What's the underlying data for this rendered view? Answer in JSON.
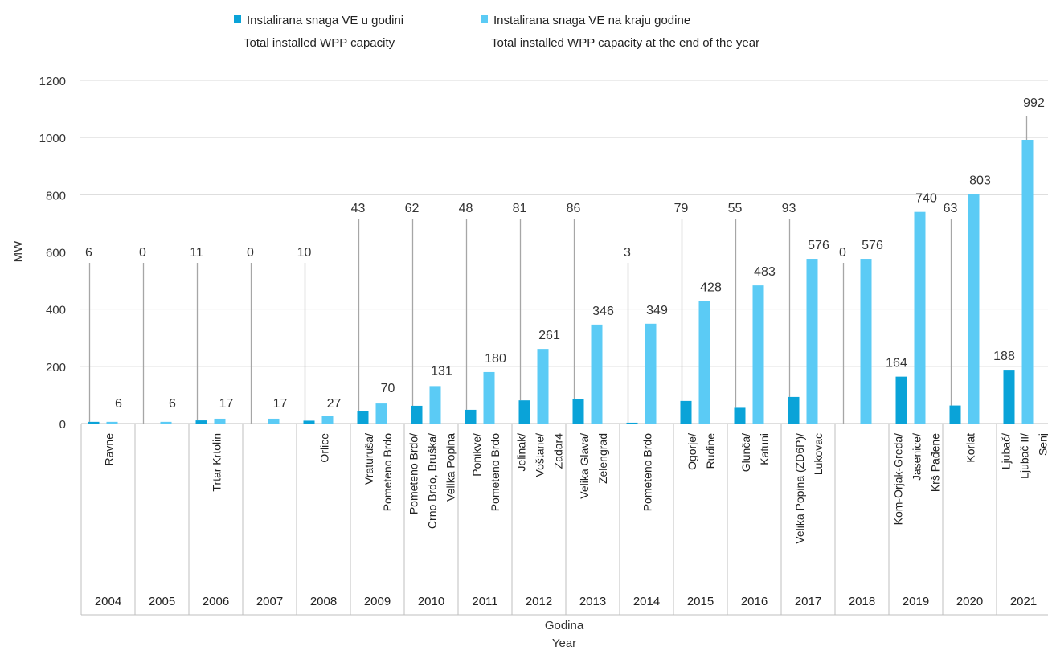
{
  "chart_data": {
    "type": "bar",
    "title": "",
    "ylabel": "MW",
    "xlabel": [
      "Godina",
      "Year"
    ],
    "ylim": [
      0,
      1200
    ],
    "yticks": [
      0,
      200,
      400,
      600,
      800,
      1000,
      1200
    ],
    "grid": true,
    "legend_position": "top",
    "categories": [
      "2004",
      "2005",
      "2006",
      "2007",
      "2008",
      "2009",
      "2010",
      "2011",
      "2012",
      "2013",
      "2014",
      "2015",
      "2016",
      "2017",
      "2018",
      "2019",
      "2020",
      "2021"
    ],
    "projects": [
      [
        "Ravne"
      ],
      [],
      [
        "Trtar Krtolin"
      ],
      [],
      [
        "Orlice"
      ],
      [
        "Vraturuša/",
        "Pometeno Brdo"
      ],
      [
        "Pometeno Brdo/",
        "Crno Brdo, Bruška/",
        "Velika Popina"
      ],
      [
        "Ponikve/",
        "Pometeno Brdo"
      ],
      [
        "Jelinak/",
        "Voštane/",
        "Zadar4"
      ],
      [
        "Velika Glava/",
        "Zelengrad"
      ],
      [
        "Pometeno Brdo"
      ],
      [
        "Ogorje/",
        "Rudine"
      ],
      [
        "Glunča/",
        "Katuni"
      ],
      [
        "Velika Popina (ZD6P)/",
        "Lukovac"
      ],
      [],
      [
        "Kom-Orjak-Greda/",
        "Jasenice/",
        "Krš Pađene"
      ],
      [
        "Korlat"
      ],
      [
        "Ljubač/",
        "Ljubač II/",
        "Senj"
      ]
    ],
    "series": [
      {
        "name": [
          "Instalirana snaga VE u godini",
          "Total installed WPP capacity"
        ],
        "color": "#0aa3d8",
        "values": [
          6,
          0,
          11,
          0,
          10,
          43,
          62,
          48,
          81,
          86,
          3,
          79,
          55,
          93,
          0,
          164,
          63,
          188
        ]
      },
      {
        "name": [
          "Instalirana snaga VE na kraju godine",
          "Total installed WPP capacity at the end of the year"
        ],
        "color": "#5bcbf5",
        "values": [
          6,
          6,
          17,
          17,
          27,
          70,
          131,
          180,
          261,
          346,
          349,
          428,
          483,
          576,
          576,
          740,
          803,
          992
        ]
      }
    ]
  }
}
